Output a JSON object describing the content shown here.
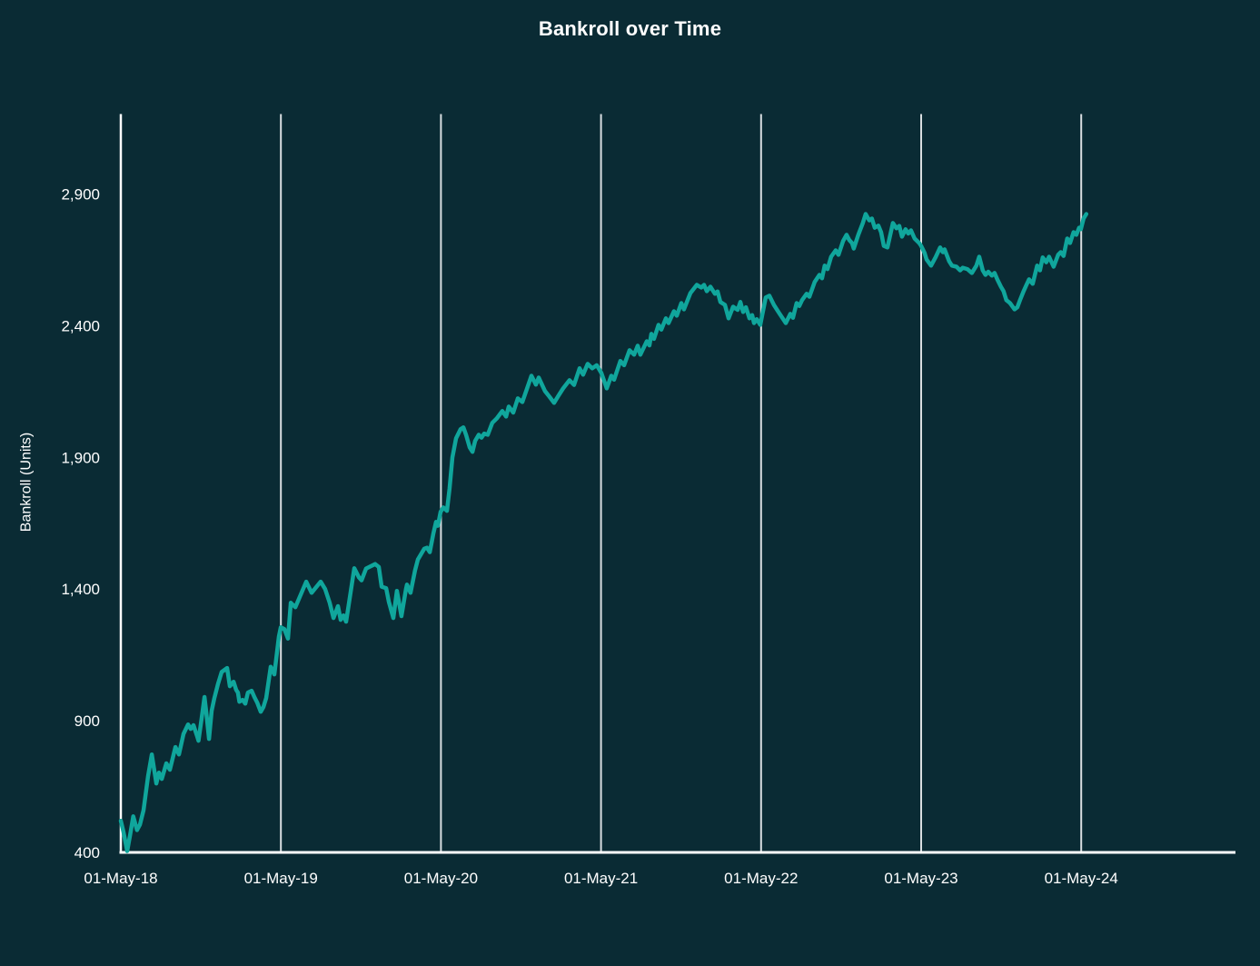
{
  "chart_data": {
    "type": "line",
    "title": "Bankroll over Time",
    "ylabel": "Bankroll (Units)",
    "xlabel": "",
    "x_tick_labels": [
      "01-May-18",
      "01-May-19",
      "01-May-20",
      "01-May-21",
      "01-May-22",
      "01-May-23",
      "01-May-24"
    ],
    "months_per_x_tick": 12,
    "y_ticks": [
      400,
      900,
      1400,
      1900,
      2400,
      2900
    ],
    "ylim": [
      400,
      3200
    ],
    "grid": "vertical white gridlines at yearly x ticks only",
    "legend": "none",
    "colors": {
      "background": "#0a2b34",
      "line": "#10a69c",
      "axis": "#ffffff",
      "gridline": "#d9dee1",
      "text": "#ffffff"
    },
    "series": [
      {
        "name": "Bankroll",
        "point_format": "[months_since_01-May-18, bankroll_units]",
        "points": [
          [
            0,
            520
          ],
          [
            0.2,
            478
          ],
          [
            0.48,
            405
          ],
          [
            0.7,
            468
          ],
          [
            0.93,
            537
          ],
          [
            1.21,
            485
          ],
          [
            1.43,
            505
          ],
          [
            1.7,
            560
          ],
          [
            2.04,
            690
          ],
          [
            2.32,
            772
          ],
          [
            2.66,
            662
          ],
          [
            2.86,
            703
          ],
          [
            3.07,
            679
          ],
          [
            3.41,
            738
          ],
          [
            3.68,
            714
          ],
          [
            4.09,
            800
          ],
          [
            4.36,
            772
          ],
          [
            4.7,
            850
          ],
          [
            5.04,
            886
          ],
          [
            5.24,
            869
          ],
          [
            5.45,
            883
          ],
          [
            5.72,
            841
          ],
          [
            5.82,
            824
          ],
          [
            6.06,
            910
          ],
          [
            6.27,
            990
          ],
          [
            6.4,
            934
          ],
          [
            6.61,
            831
          ],
          [
            6.81,
            938
          ],
          [
            7.01,
            985
          ],
          [
            7.29,
            1040
          ],
          [
            7.56,
            1085
          ],
          [
            7.97,
            1100
          ],
          [
            8.17,
            1031
          ],
          [
            8.45,
            1048
          ],
          [
            8.65,
            1017
          ],
          [
            8.78,
            1007
          ],
          [
            8.89,
            972
          ],
          [
            9.13,
            979
          ],
          [
            9.33,
            965
          ],
          [
            9.53,
            1007
          ],
          [
            9.81,
            1014
          ],
          [
            10.01,
            990
          ],
          [
            10.22,
            969
          ],
          [
            10.49,
            934
          ],
          [
            10.69,
            952
          ],
          [
            10.9,
            986
          ],
          [
            11.24,
            1105
          ],
          [
            11.51,
            1076
          ],
          [
            11.85,
            1220
          ],
          [
            11.99,
            1255
          ],
          [
            12.26,
            1248
          ],
          [
            12.53,
            1212
          ],
          [
            12.74,
            1348
          ],
          [
            13.08,
            1331
          ],
          [
            13.9,
            1428
          ],
          [
            14.3,
            1386
          ],
          [
            14.98,
            1428
          ],
          [
            15.32,
            1400
          ],
          [
            15.66,
            1348
          ],
          [
            15.94,
            1290
          ],
          [
            16.28,
            1335
          ],
          [
            16.48,
            1283
          ],
          [
            16.69,
            1300
          ],
          [
            16.89,
            1276
          ],
          [
            17.5,
            1479
          ],
          [
            17.84,
            1445
          ],
          [
            18.05,
            1433
          ],
          [
            18.39,
            1478
          ],
          [
            19.07,
            1495
          ],
          [
            19.34,
            1484
          ],
          [
            19.55,
            1409
          ],
          [
            19.89,
            1403
          ],
          [
            20.09,
            1352
          ],
          [
            20.43,
            1290
          ],
          [
            20.7,
            1393
          ],
          [
            21.04,
            1297
          ],
          [
            21.38,
            1400
          ],
          [
            21.45,
            1417
          ],
          [
            21.72,
            1386
          ],
          [
            22.06,
            1471
          ],
          [
            22.27,
            1512
          ],
          [
            22.75,
            1553
          ],
          [
            22.95,
            1557
          ],
          [
            23.16,
            1540
          ],
          [
            23.43,
            1610
          ],
          [
            23.63,
            1655
          ],
          [
            23.77,
            1640
          ],
          [
            23.97,
            1693
          ],
          [
            24.18,
            1710
          ],
          [
            24.45,
            1697
          ],
          [
            24.65,
            1783
          ],
          [
            24.86,
            1900
          ],
          [
            25.13,
            1972
          ],
          [
            25.47,
            2007
          ],
          [
            25.68,
            2014
          ],
          [
            25.88,
            1986
          ],
          [
            26.15,
            1938
          ],
          [
            26.36,
            1921
          ],
          [
            26.56,
            1962
          ],
          [
            26.83,
            1986
          ],
          [
            27.04,
            1975
          ],
          [
            27.24,
            1990
          ],
          [
            27.51,
            1986
          ],
          [
            27.85,
            2031
          ],
          [
            28.19,
            2048
          ],
          [
            28.6,
            2076
          ],
          [
            28.88,
            2055
          ],
          [
            29.08,
            2093
          ],
          [
            29.42,
            2070
          ],
          [
            29.76,
            2124
          ],
          [
            30.1,
            2110
          ],
          [
            30.44,
            2160
          ],
          [
            30.78,
            2210
          ],
          [
            31.12,
            2176
          ],
          [
            31.33,
            2203
          ],
          [
            31.8,
            2152
          ],
          [
            32.14,
            2130
          ],
          [
            32.48,
            2107
          ],
          [
            32.82,
            2135
          ],
          [
            33.16,
            2162
          ],
          [
            33.64,
            2193
          ],
          [
            33.98,
            2175
          ],
          [
            34.39,
            2238
          ],
          [
            34.66,
            2214
          ],
          [
            35,
            2255
          ],
          [
            35.34,
            2238
          ],
          [
            35.68,
            2250
          ],
          [
            36.02,
            2221
          ],
          [
            36.43,
            2162
          ],
          [
            36.77,
            2210
          ],
          [
            36.98,
            2195
          ],
          [
            37.45,
            2266
          ],
          [
            37.73,
            2250
          ],
          [
            38.14,
            2307
          ],
          [
            38.48,
            2290
          ],
          [
            38.75,
            2324
          ],
          [
            38.95,
            2290
          ],
          [
            39.43,
            2341
          ],
          [
            39.63,
            2325
          ],
          [
            39.77,
            2369
          ],
          [
            39.97,
            2350
          ],
          [
            40.31,
            2403
          ],
          [
            40.52,
            2385
          ],
          [
            40.86,
            2428
          ],
          [
            41.06,
            2410
          ],
          [
            41.47,
            2455
          ],
          [
            41.68,
            2438
          ],
          [
            42.02,
            2486
          ],
          [
            42.22,
            2462
          ],
          [
            42.7,
            2524
          ],
          [
            43.18,
            2555
          ],
          [
            43.52,
            2545
          ],
          [
            43.72,
            2555
          ],
          [
            43.93,
            2531
          ],
          [
            44.2,
            2548
          ],
          [
            44.54,
            2521
          ],
          [
            44.74,
            2530
          ],
          [
            44.95,
            2490
          ],
          [
            45.29,
            2479
          ],
          [
            45.56,
            2428
          ],
          [
            45.9,
            2472
          ],
          [
            46.24,
            2460
          ],
          [
            46.45,
            2490
          ],
          [
            46.65,
            2452
          ],
          [
            46.86,
            2470
          ],
          [
            47.13,
            2428
          ],
          [
            47.33,
            2440
          ],
          [
            47.47,
            2410
          ],
          [
            47.67,
            2425
          ],
          [
            47.94,
            2403
          ],
          [
            48.35,
            2507
          ],
          [
            48.62,
            2514
          ],
          [
            48.96,
            2479
          ],
          [
            49.3,
            2452
          ],
          [
            49.85,
            2410
          ],
          [
            50.19,
            2445
          ],
          [
            50.39,
            2430
          ],
          [
            50.66,
            2486
          ],
          [
            50.87,
            2475
          ],
          [
            51.07,
            2497
          ],
          [
            51.41,
            2521
          ],
          [
            51.62,
            2510
          ],
          [
            52.02,
            2566
          ],
          [
            52.37,
            2593
          ],
          [
            52.57,
            2580
          ],
          [
            52.77,
            2628
          ],
          [
            52.98,
            2615
          ],
          [
            53.25,
            2662
          ],
          [
            53.59,
            2686
          ],
          [
            53.8,
            2669
          ],
          [
            54.14,
            2721
          ],
          [
            54.41,
            2745
          ],
          [
            54.61,
            2725
          ],
          [
            54.82,
            2714
          ],
          [
            54.95,
            2693
          ],
          [
            55.29,
            2745
          ],
          [
            55.63,
            2790
          ],
          [
            55.84,
            2824
          ],
          [
            56.11,
            2800
          ],
          [
            56.31,
            2807
          ],
          [
            56.52,
            2772
          ],
          [
            56.79,
            2780
          ],
          [
            57,
            2755
          ],
          [
            57.2,
            2703
          ],
          [
            57.47,
            2697
          ],
          [
            57.88,
            2790
          ],
          [
            58.15,
            2770
          ],
          [
            58.36,
            2779
          ],
          [
            58.56,
            2738
          ],
          [
            58.83,
            2766
          ],
          [
            59.04,
            2750
          ],
          [
            59.24,
            2762
          ],
          [
            59.51,
            2731
          ],
          [
            59.85,
            2714
          ],
          [
            60,
            2703
          ],
          [
            60.26,
            2676
          ],
          [
            60.4,
            2652
          ],
          [
            60.74,
            2628
          ],
          [
            61.08,
            2660
          ],
          [
            61.42,
            2697
          ],
          [
            61.63,
            2679
          ],
          [
            61.76,
            2690
          ],
          [
            62.1,
            2645
          ],
          [
            62.31,
            2628
          ],
          [
            62.65,
            2624
          ],
          [
            62.92,
            2610
          ],
          [
            63.12,
            2620
          ],
          [
            63.46,
            2615
          ],
          [
            63.8,
            2600
          ],
          [
            64.14,
            2628
          ],
          [
            64.35,
            2662
          ],
          [
            64.62,
            2610
          ],
          [
            64.82,
            2593
          ],
          [
            65.03,
            2605
          ],
          [
            65.3,
            2590
          ],
          [
            65.5,
            2600
          ],
          [
            65.71,
            2576
          ],
          [
            65.98,
            2548
          ],
          [
            66.18,
            2531
          ],
          [
            66.39,
            2497
          ],
          [
            66.66,
            2486
          ],
          [
            67,
            2462
          ],
          [
            67.21,
            2470
          ],
          [
            67.41,
            2497
          ],
          [
            67.68,
            2531
          ],
          [
            67.89,
            2555
          ],
          [
            68.09,
            2576
          ],
          [
            68.36,
            2559
          ],
          [
            68.7,
            2628
          ],
          [
            68.91,
            2610
          ],
          [
            69.11,
            2659
          ],
          [
            69.38,
            2641
          ],
          [
            69.59,
            2662
          ],
          [
            69.93,
            2624
          ],
          [
            70.27,
            2669
          ],
          [
            70.47,
            2679
          ],
          [
            70.68,
            2665
          ],
          [
            70.95,
            2731
          ],
          [
            71.16,
            2714
          ],
          [
            71.43,
            2755
          ],
          [
            71.63,
            2745
          ],
          [
            71.84,
            2772
          ],
          [
            71.97,
            2766
          ],
          [
            72.18,
            2807
          ],
          [
            72.38,
            2824
          ]
        ]
      }
    ]
  }
}
